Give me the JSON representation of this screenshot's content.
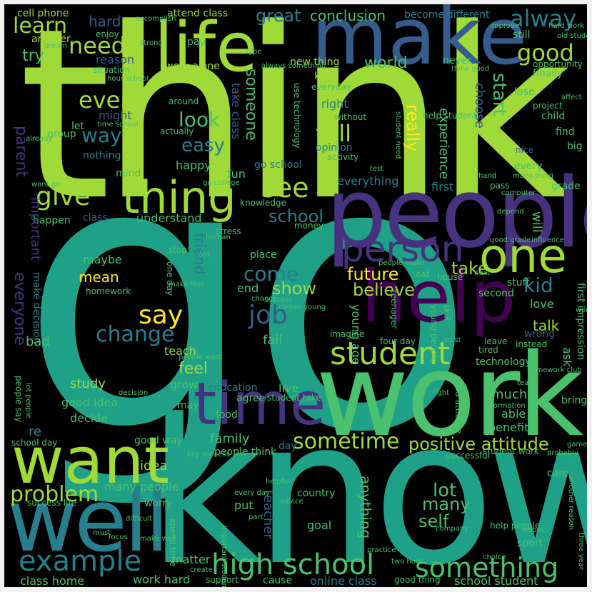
{
  "colors": {
    "background": "#000000",
    "page": "#f2f2f2",
    "lime": "#a0da39",
    "green": "#4ac16d",
    "teal": "#1fa187",
    "blue": "#277f8e",
    "slate": "#365c8d",
    "indigo": "#46327e",
    "purple": "#440154",
    "yellow": "#fde725"
  },
  "words": {
    "go": "go",
    "think": "think",
    "know": "know",
    "work": "work",
    "people": "people",
    "make": "make",
    "well": "well",
    "help": "help",
    "life": "life",
    "want": "want",
    "time": "time",
    "thing": "thing",
    "one": "one",
    "person": "person",
    "student": "student",
    "example": "example",
    "high_school": "high school",
    "something": "something",
    "good": "good",
    "alway": "alway",
    "give": "give",
    "see": "see",
    "say": "say",
    "job": "job",
    "change": "change",
    "tell": "tell",
    "need": "need",
    "learn": "learn",
    "even": "even",
    "way": "way",
    "easy": "easy",
    "look": "look",
    "problem": "problem",
    "sometime": "sometime",
    "positive_attitude": "positive attitude",
    "future": "future",
    "come": "come",
    "show": "show",
    "believe": "believe",
    "kid": "kid",
    "take": "take",
    "lot": "lot",
    "many": "many",
    "use": "use",
    "self": "self",
    "school": "school",
    "world": "world",
    "great": "great",
    "conclusion": "conclusion",
    "become": "become",
    "different": "different",
    "cell_phone": "cell phone",
    "attend_class": "attend class",
    "hard": "hard",
    "try": "try",
    "reason": "reason",
    "another": "another",
    "work_alone": "work alone",
    "new_thing": "new thing",
    "keep": "keep",
    "right": "right",
    "might": "might",
    "let": "let",
    "group": "group",
    "nothing": "nothing",
    "mind": "mind",
    "happy": "happy",
    "fun": "fun",
    "opinion": "opinion",
    "go_school": "go school",
    "someone": "someone",
    "take_class": "take class",
    "really": "really",
    "experience": "experience",
    "choose": "choose",
    "start": "start",
    "still": "still",
    "never": "never",
    "everyday": "everyday",
    "finally": "finally",
    "lose": "lose",
    "child": "child",
    "find": "find",
    "big": "big",
    "nice": "nice",
    "every": "every",
    "grade": "grade",
    "will": "will",
    "first": "first",
    "everything": "everything",
    "understand": "understand",
    "class": "class",
    "happen": "happen",
    "important": "important",
    "parent": "parent",
    "everyone": "everyone",
    "maybe": "maybe",
    "mean": "mean",
    "friend": "friend",
    "end": "end",
    "make_decision": "make decision",
    "bad": "bad",
    "teach": "teach",
    "study": "study",
    "good_idea": "good idea",
    "decide": "decide",
    "grow": "grow",
    "feel": "feel",
    "live": "live",
    "fail": "fail",
    "education": "education",
    "agree": "agree",
    "food": "food",
    "may": "may",
    "family": "family",
    "idea": "idea",
    "many_people": "many people",
    "put": "put",
    "goal": "goal",
    "anything": "anything",
    "teacher": "teacher",
    "much": "much",
    "able": "able",
    "benefit": "benefit",
    "technology": "technology",
    "talk": "talk",
    "ask": "ask",
    "wrong": "wrong",
    "love": "love",
    "stuff": "stuff",
    "second": "second",
    "first_impression": "first impression",
    "place": "place",
    "young_age": "young age",
    "day": "day",
    "re": "re",
    "good_way": "good way",
    "work_hard": "work hard",
    "matter": "matter",
    "class_home": "class home",
    "online_class": "online class",
    "good_thing": "good thing",
    "school_student": "school student",
    "cause": "cause",
    "support": "support",
    "people_think": "people think",
    "country": "country",
    "care": "care",
    "bring": "bring",
    "homework": "homework",
    "stop": "stop",
    "one_day": "one day",
    "worry": "worry",
    "success_life": "success life",
    "spend_time": "spend time",
    "sport": "sport",
    "student_work": "student work",
    "student_take": "student take",
    "knowledge": "knowledge",
    "stress": "stress",
    "money": "money",
    "pass": "pass",
    "eat": "eat",
    "house": "house",
    "skill": "skill",
    "young_people": "young people",
    "imagine": "imagine",
    "four_day": "four day",
    "leave": "leave",
    "instead": "instead",
    "tired": "tired",
    "ready": "ready",
    "help_student": "help student",
    "activity": "activity",
    "without": "without",
    "enjoy": "enjoy",
    "situation": "situation",
    "around": "around",
    "actually": "actually",
    "opportunity": "opportunity",
    "project": "project",
    "affect": "affect",
    "word": "word",
    "people_say": "people say",
    "lot_people": "lot people",
    "school_day": "school day",
    "kind": "kind",
    "information": "information",
    "depend": "depend",
    "human": "human",
    "chance": "chance",
    "people_make": "people make",
    "company": "company",
    "respect": "respect",
    "three_year": "three year",
    "old_student": "old student",
    "game": "game",
    "every_day": "every day",
    "make_well": "make well",
    "help_people": "help people",
    "two_hour": "two hour",
    "old": "old",
    "must": "must",
    "advice": "advice",
    "create": "create",
    "teenager": "teenager",
    "success": "success",
    "career_young": "career young",
    "part": "part",
    "focus": "focus",
    "fight": "fight",
    "team": "team",
    "key_success": "key success",
    "good_grade": "good grade",
    "influence": "influence",
    "hour_school": "hour school",
    "think_good": "think good",
    "improve": "improve",
    "hard_work": "hard work",
    "use_technology": "use technology",
    "time_school": "time school",
    "always_something": "always something",
    "student_need": "student need",
    "go_college": "go college",
    "many_thing": "many thing",
    "test": "test",
    "want_go": "want go",
    "make_feel": "make feel",
    "people_want": "people want",
    "decision": "decision",
    "difficult": "difficult",
    "helpful": "helpful",
    "practice": "practice",
    "probably": "probably",
    "another_reason": "another reason",
    "homework_club": "homework club",
    "successful": "successful",
    "important_student": "important student",
    "good_attitude": "good attitude",
    "already": "already",
    "strong": "strong",
    "accomplish": "accomplish",
    "pay": "pay",
    "type": "type",
    "dream": "dream",
    "next": "next",
    "trust": "trust",
    "choice": "choice",
    "computer": "computer",
    "hand": "hand"
  }
}
